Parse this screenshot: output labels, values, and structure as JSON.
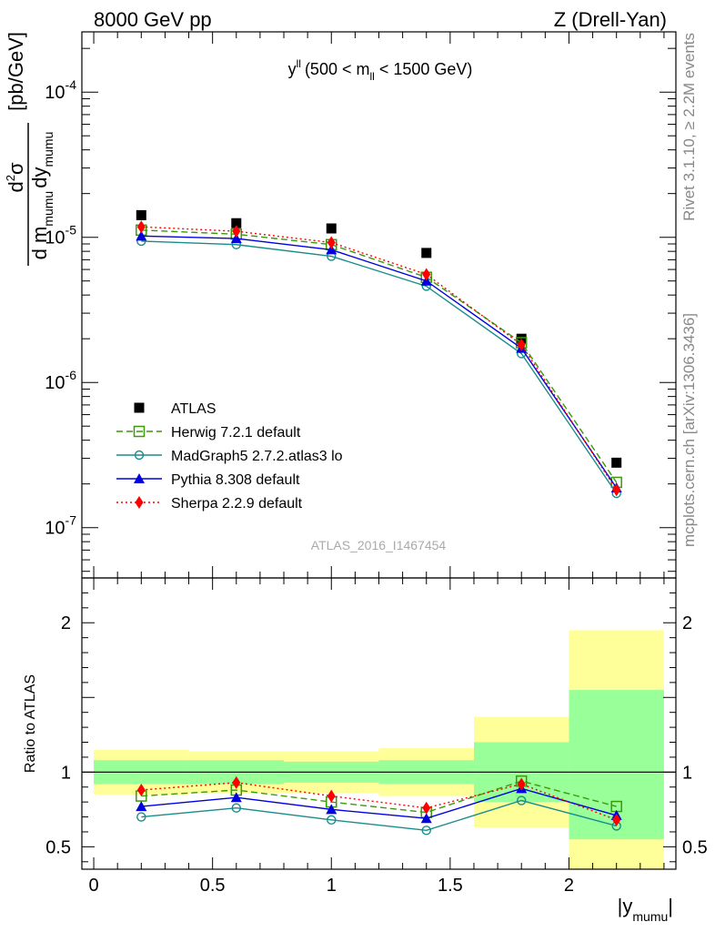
{
  "header": {
    "left": "8000 GeV pp",
    "right": "Z (Drell-Yan)"
  },
  "side": {
    "top": "Rivet 3.1.10, ≥ 2.2M events",
    "bottom": "mcplots.cern.ch [arXiv:1306.3436]"
  },
  "watermark": "ATLAS_2016_I1467454",
  "colors": {
    "atlas": "#000000",
    "herwig": "#3a9a0a",
    "madgraph": "#1a8c8c",
    "pythia": "#0000e0",
    "sherpa": "#ff0000",
    "band_yellow": "#ffff99",
    "band_green": "#99ff99"
  },
  "chart_data": [
    {
      "type": "line",
      "panel": "main",
      "title": "y^ll (500 < m_ll < 1500 GeV)",
      "title_parts": {
        "base": "y",
        "sup": "ll",
        "pre": "(500 < m",
        "sub": "ll",
        "post": " < 1500 GeV)"
      },
      "ylabel": "d²σ / d m_mumu dy_mumu [pb/GeV]",
      "ylabel_parts": {
        "num": "d",
        "num_sup": "2",
        "num_sigma": "σ",
        "den1": "d m",
        "den1_sub": "mumu",
        "den2": "dy",
        "den2_sub": "mumu",
        "unit": "[pb/GeV]"
      },
      "y_scale": "log",
      "xlim": [
        -0.05,
        2.45
      ],
      "ylim": [
        4.5e-08,
        0.00026
      ],
      "y_tick_labels": [
        {
          "mantissa": "10",
          "exp": "-7",
          "value": 1e-07
        },
        {
          "mantissa": "10",
          "exp": "-6",
          "value": 1e-06
        },
        {
          "mantissa": "10",
          "exp": "-5",
          "value": 1e-05
        },
        {
          "mantissa": "10",
          "exp": "-4",
          "value": 0.0001
        }
      ],
      "x": [
        0.2,
        0.6,
        1.0,
        1.4,
        1.8,
        2.2
      ],
      "series": [
        {
          "name": "ATLAS",
          "key": "atlas",
          "values": [
            1.42e-05,
            1.25e-05,
            1.15e-05,
            7.8e-06,
            2e-06,
            2.8e-07
          ]
        },
        {
          "name": "Herwig 7.2.1 default",
          "key": "herwig",
          "values": [
            1.12e-05,
            1.05e-05,
            8.9e-06,
            5.3e-06,
            1.88e-06,
            2.05e-07
          ]
        },
        {
          "name": "MadGraph5 2.7.2.atlas3 lo",
          "key": "madgraph",
          "values": [
            9.4e-06,
            8.9e-06,
            7.4e-06,
            4.6e-06,
            1.58e-06,
            1.72e-07
          ]
        },
        {
          "name": "Pythia 8.308 default",
          "key": "pythia",
          "values": [
            1.02e-05,
            9.8e-06,
            8.2e-06,
            5e-06,
            1.72e-06,
            1.88e-07
          ]
        },
        {
          "name": "Sherpa 2.2.9 default",
          "key": "sherpa",
          "values": [
            1.18e-05,
            1.1e-05,
            9.2e-06,
            5.55e-06,
            1.82e-06,
            1.82e-07
          ]
        }
      ],
      "legend": "bottom-left"
    },
    {
      "type": "line",
      "panel": "ratio",
      "ylabel": "Ratio to ATLAS",
      "xlabel": "|y_mumu|",
      "xlabel_parts": {
        "base": "|y",
        "sub": "mumu",
        "post": "|"
      },
      "xlim": [
        -0.05,
        2.45
      ],
      "ylim": [
        0.35,
        2.3
      ],
      "x_ticks": [
        0,
        0.5,
        1,
        1.5,
        2
      ],
      "x_tick_labels": [
        "0",
        "0.5",
        "1",
        "1.5",
        "2"
      ],
      "y_ticks": [
        0.5,
        1,
        2
      ],
      "y_tick_labels": [
        "0.5",
        "1",
        "2"
      ],
      "bins": [
        [
          0.0,
          0.4
        ],
        [
          0.4,
          0.8
        ],
        [
          0.8,
          1.2
        ],
        [
          1.2,
          1.6
        ],
        [
          1.6,
          2.0
        ],
        [
          2.0,
          2.4
        ]
      ],
      "band_yellow": [
        [
          0.85,
          1.15
        ],
        [
          0.86,
          1.14
        ],
        [
          0.86,
          1.14
        ],
        [
          0.84,
          1.16
        ],
        [
          0.63,
          1.37
        ],
        [
          0.35,
          1.95
        ]
      ],
      "band_green": [
        [
          0.92,
          1.08
        ],
        [
          0.92,
          1.08
        ],
        [
          0.93,
          1.07
        ],
        [
          0.92,
          1.08
        ],
        [
          0.8,
          1.2
        ],
        [
          0.55,
          1.55
        ]
      ],
      "x": [
        0.2,
        0.6,
        1.0,
        1.4,
        1.8,
        2.2
      ],
      "series": [
        {
          "name": "Herwig 7.2.1 default",
          "key": "herwig",
          "values": [
            0.84,
            0.88,
            0.8,
            0.73,
            0.94,
            0.77
          ]
        },
        {
          "name": "MadGraph5 2.7.2.atlas3 lo",
          "key": "madgraph",
          "values": [
            0.7,
            0.76,
            0.68,
            0.61,
            0.81,
            0.64
          ]
        },
        {
          "name": "Pythia 8.308 default",
          "key": "pythia",
          "values": [
            0.77,
            0.83,
            0.75,
            0.69,
            0.89,
            0.71
          ]
        },
        {
          "name": "Sherpa 2.2.9 default",
          "key": "sherpa",
          "values": [
            0.88,
            0.93,
            0.84,
            0.76,
            0.92,
            0.68
          ]
        }
      ]
    }
  ]
}
